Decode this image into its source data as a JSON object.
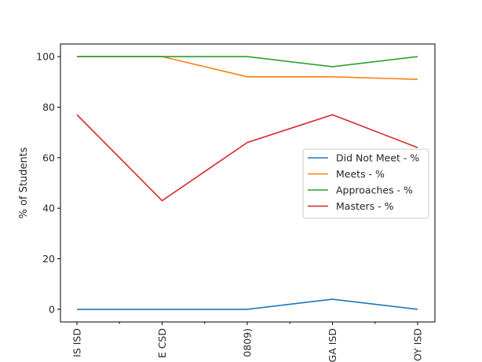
{
  "chart_data": {
    "type": "line",
    "ylabel": "% of Students",
    "xlabel": "",
    "categories": [
      "IS ISD",
      "E CSD",
      "0809)",
      "GA ISD",
      "OY ISD"
    ],
    "ylim": [
      -5,
      105
    ],
    "yticks": [
      0,
      20,
      40,
      60,
      80,
      100
    ],
    "grid": false,
    "legend_position": "center-right",
    "series": [
      {
        "name": "Did Not Meet - %",
        "color": "#1f77b4",
        "values": [
          0,
          0,
          0,
          4,
          0
        ]
      },
      {
        "name": "Meets - %",
        "color": "#ff7f0e",
        "values": [
          100,
          100,
          92,
          92,
          91
        ]
      },
      {
        "name": "Approaches - %",
        "color": "#2ca02c",
        "values": [
          100,
          100,
          100,
          96,
          100
        ]
      },
      {
        "name": "Masters - %",
        "color": "#d62728",
        "values": [
          77,
          43,
          66,
          77,
          64
        ]
      }
    ]
  }
}
